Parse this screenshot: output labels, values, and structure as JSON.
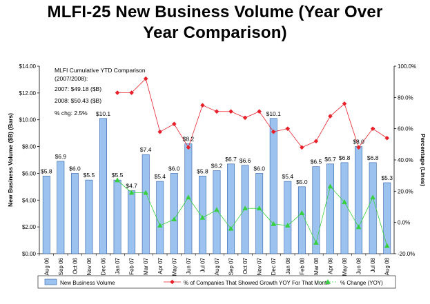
{
  "chart_data": {
    "type": "bar+line",
    "title_lines": [
      "MLFI-25 New Business Volume  (Year Over",
      "Year Comparison)"
    ],
    "categories": [
      "Aug 06",
      "Sep 06",
      "Oct 06",
      "Nov 06",
      "Dec 06",
      "Jan 07",
      "Feb 07",
      "Mar 07",
      "Apr 07",
      "May 07",
      "Jun 07",
      "Jul 07",
      "Aug 07",
      "Sep 07",
      "Oct 07",
      "Nov 07",
      "Dec 07",
      "Jan 08",
      "Feb 08",
      "Mar 08",
      "Apr 08",
      "May 08",
      "Jun 08",
      "Jul 08",
      "Aug 08"
    ],
    "bar_series": {
      "name": "New Business Volume",
      "color": "#9cc3f0",
      "border": "#2e5fa8",
      "values": [
        5.8,
        6.9,
        6.0,
        5.5,
        10.1,
        5.5,
        4.7,
        7.4,
        5.4,
        6.0,
        8.2,
        5.8,
        6.2,
        6.7,
        6.6,
        6.0,
        10.1,
        5.4,
        5.0,
        6.5,
        6.7,
        6.8,
        8.0,
        6.8,
        5.3
      ],
      "labels": [
        "$5.8",
        "$6.9",
        "$6.0",
        "$5.5",
        "$10.1",
        "$5.5",
        "$4.7",
        "$7.4",
        "$5.4",
        "$6.0",
        "$8.2",
        "$5.8",
        "$6.2",
        "$6.7",
        "$6.6",
        "$6.0",
        "$10.1",
        "$5.4",
        "$5.0",
        "$6.5",
        "$6.7",
        "$6.8",
        "$8.0",
        "$6.8",
        "$5.3"
      ]
    },
    "line_series": [
      {
        "name": "% of Companies That Showed Growth YOY For That Month",
        "color": "#e8202a",
        "marker": "diamond",
        "values": [
          null,
          null,
          null,
          null,
          null,
          83,
          83,
          92,
          58,
          63,
          48,
          75,
          71,
          71,
          67,
          71,
          58,
          60,
          48,
          52,
          68,
          76,
          48,
          60,
          54
        ]
      },
      {
        "name": "% Change (YOY)",
        "color": "#38d040",
        "marker": "triangle",
        "values": [
          null,
          null,
          null,
          null,
          null,
          27,
          19,
          19,
          -2,
          2,
          16,
          3,
          8,
          -4,
          9,
          9,
          -1,
          -2,
          6,
          -13,
          23,
          13,
          -3,
          16,
          -15
        ]
      }
    ],
    "y_left": {
      "label": "New Business Volume ($B) (Bars)",
      "min": 0,
      "max": 14,
      "step": 2,
      "ticks": [
        "$0.00",
        "$2.00",
        "$4.00",
        "$6.00",
        "$8.00",
        "$10.00",
        "$12.00",
        "$14.00"
      ]
    },
    "y_right": {
      "label": "Percentage (Lines)",
      "min": -20,
      "max": 100,
      "step": 20,
      "ticks": [
        "-20.0%",
        "0.0%",
        "20.0%",
        "40.0%",
        "60.0%",
        "80.0%",
        "100.0%"
      ]
    },
    "annotation_lines": [
      "MLFI Cumulative YTD Comparison",
      "(2007/2008):",
      "2007: $49.18 ($B)",
      "2008: $50.43 ($B)",
      "% chg:  2.5%"
    ],
    "legend_position": "bottom",
    "grid": false
  }
}
